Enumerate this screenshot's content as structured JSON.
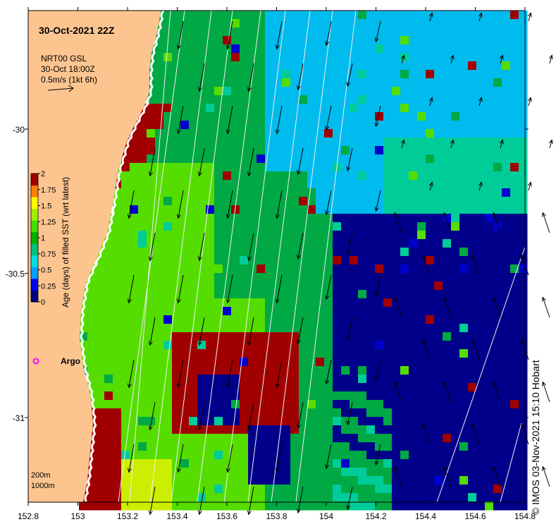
{
  "map": {
    "title": "30-Oct-2021 22Z",
    "current_ref": {
      "line1": "NRT00 GSL",
      "line2": "30-Oct 18:00Z",
      "line3": "0.5m/s (1kt 6h)"
    },
    "argo_label": "Argo",
    "depth_labels": [
      "200m",
      "1000m"
    ],
    "credit": "© IMOS 03-Nov-2021 15:10 Hobart",
    "lon_ticks": [
      "152.8",
      "153",
      "153.2",
      "153.4",
      "153.6",
      "153.8",
      "154",
      "154.2",
      "154.4",
      "154.6",
      "154.8"
    ],
    "lat_ticks": [
      "-30",
      "-30.5",
      "-31"
    ]
  },
  "colorbar": {
    "title": "Age (days) of filled SST (wrt latest)",
    "ticks": [
      "2",
      "1.75",
      "1.5",
      "1.25",
      "1",
      "0.75",
      "0.5",
      "0.25",
      "0"
    ],
    "colors": [
      "#000080",
      "#0000ff",
      "#00a0ff",
      "#00e0e0",
      "#00c080",
      "#00b000",
      "#40e000",
      "#a0f000",
      "#ffff00",
      "#ff8000",
      "#a00000"
    ]
  },
  "palette": {
    "land": "#fcc590",
    "c0": "#00008a",
    "c025": "#0000cc",
    "c05": "#00bbee",
    "c075": "#00cc99",
    "c09": "#00a944",
    "c1": "#1fbf1f",
    "c12": "#55dd00",
    "c15": "#ccee00",
    "c175": "#f09000",
    "c2": "#a00000"
  }
}
